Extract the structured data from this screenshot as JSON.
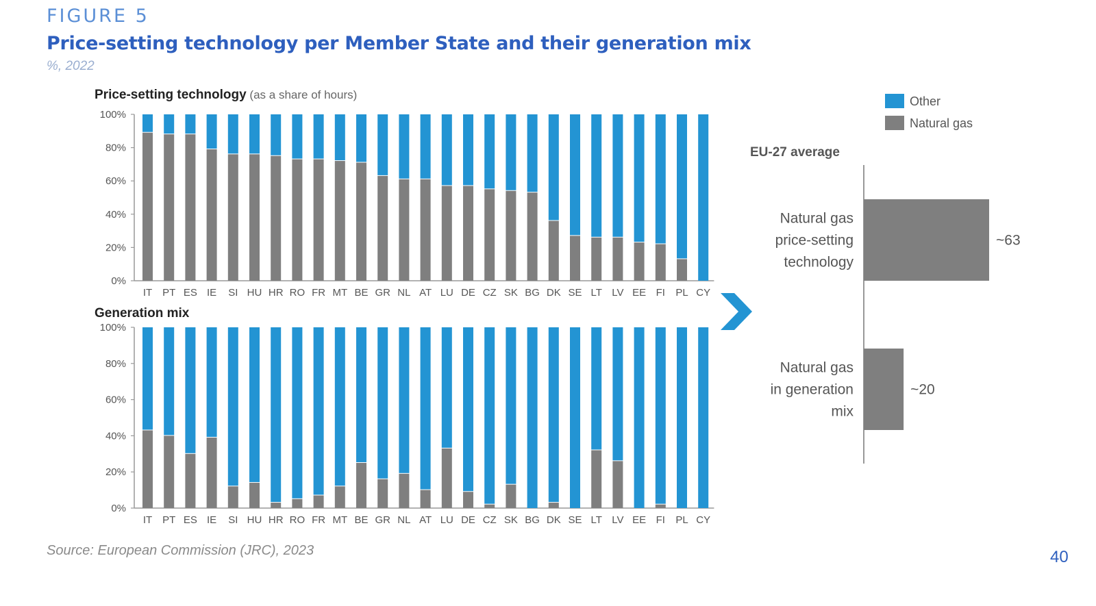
{
  "figure": {
    "label": "FIGURE 5",
    "title": "Price-setting technology per Member State and their generation mix",
    "subtitle": "%, 2022",
    "source": "Source: European Commission (JRC), 2023",
    "page_number": "40"
  },
  "colors": {
    "other": "#2394d3",
    "natural_gas": "#7f7f7f",
    "title": "#2e5fbe",
    "arrow": "#2394d3"
  },
  "legend": [
    {
      "key": "other",
      "label": "Other"
    },
    {
      "key": "natural_gas",
      "label": "Natural gas"
    }
  ],
  "chart_data": [
    {
      "type": "bar",
      "stacked": true,
      "title_bold": "Price-setting technology",
      "title_note": "(as a share of hours)",
      "ylim": [
        0,
        100
      ],
      "yticks": [
        "0%",
        "20%",
        "40%",
        "60%",
        "80%",
        "100%"
      ],
      "categories": [
        "IT",
        "PT",
        "ES",
        "IE",
        "SI",
        "HU",
        "HR",
        "RO",
        "FR",
        "MT",
        "BE",
        "GR",
        "NL",
        "AT",
        "LU",
        "DE",
        "CZ",
        "SK",
        "BG",
        "DK",
        "SE",
        "LT",
        "LV",
        "EE",
        "FI",
        "PL",
        "CY"
      ],
      "series": [
        {
          "name": "Natural gas",
          "values": [
            89,
            88,
            88,
            79,
            76,
            76,
            75,
            73,
            73,
            72,
            71,
            63,
            61,
            61,
            57,
            57,
            55,
            54,
            53,
            36,
            27,
            26,
            26,
            23,
            22,
            13,
            0
          ]
        },
        {
          "name": "Other",
          "values": [
            11,
            12,
            12,
            21,
            24,
            24,
            25,
            27,
            27,
            28,
            29,
            37,
            39,
            39,
            43,
            43,
            45,
            46,
            47,
            64,
            73,
            74,
            74,
            77,
            78,
            87,
            100
          ]
        }
      ]
    },
    {
      "type": "bar",
      "stacked": true,
      "title_bold": "Generation mix",
      "title_note": "",
      "ylim": [
        0,
        100
      ],
      "yticks": [
        "0%",
        "20%",
        "40%",
        "60%",
        "80%",
        "100%"
      ],
      "categories": [
        "IT",
        "PT",
        "ES",
        "IE",
        "SI",
        "HU",
        "HR",
        "RO",
        "FR",
        "MT",
        "BE",
        "GR",
        "NL",
        "AT",
        "LU",
        "DE",
        "CZ",
        "SK",
        "BG",
        "DK",
        "SE",
        "LT",
        "LV",
        "EE",
        "FI",
        "PL",
        "CY"
      ],
      "series": [
        {
          "name": "Natural gas",
          "values": [
            43,
            40,
            30,
            39,
            12,
            14,
            3,
            5,
            7,
            12,
            25,
            16,
            19,
            10,
            33,
            9,
            2,
            13,
            0,
            3,
            0,
            32,
            26,
            0,
            2,
            0,
            0
          ]
        },
        {
          "name": "Other",
          "values": [
            57,
            60,
            70,
            61,
            88,
            86,
            97,
            95,
            93,
            88,
            75,
            84,
            81,
            90,
            67,
            91,
            98,
            87,
            100,
            97,
            100,
            68,
            74,
            100,
            98,
            100,
            100
          ]
        }
      ]
    },
    {
      "type": "bar",
      "orientation": "horizontal",
      "title": "EU-27 average",
      "categories": [
        "Natural gas price-setting technology",
        "Natural gas in generation mix"
      ],
      "category_lines": [
        [
          "Natural gas",
          "price-setting",
          "technology"
        ],
        [
          "Natural gas",
          "in generation",
          "mix"
        ]
      ],
      "values": [
        63,
        20
      ],
      "data_labels": [
        "~63",
        "~20"
      ]
    }
  ]
}
